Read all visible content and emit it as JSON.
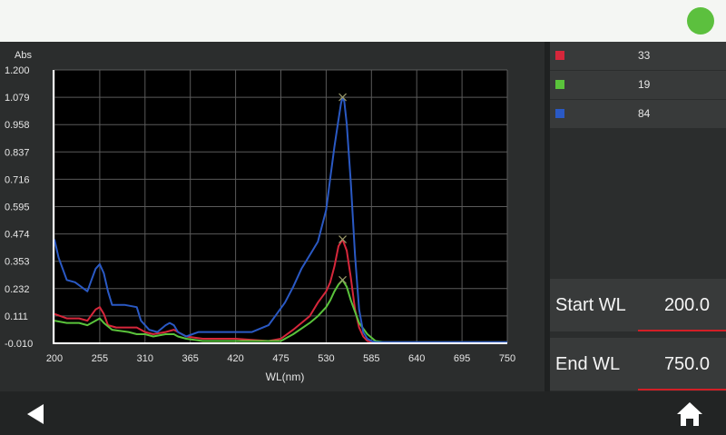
{
  "chart_data": {
    "type": "line",
    "ylabel": "Abs",
    "xlabel": "WL(nm)",
    "xlim": [
      200,
      750
    ],
    "ylim": [
      -0.01,
      1.2
    ],
    "x_ticks": [
      "200",
      "255",
      "310",
      "365",
      "420",
      "475",
      "530",
      "585",
      "640",
      "695",
      "750"
    ],
    "y_ticks": [
      "1.200",
      "1.079",
      "0.958",
      "0.837",
      "0.716",
      "0.595",
      "0.474",
      "0.353",
      "0.232",
      "0.111",
      "-0.010"
    ],
    "grid": true,
    "series": [
      {
        "name": "33",
        "color": "#d6273b",
        "x": [
          200,
          215,
          230,
          240,
          250,
          255,
          260,
          265,
          275,
          300,
          310,
          320,
          335,
          345,
          350,
          360,
          380,
          400,
          420,
          460,
          475,
          490,
          510,
          520,
          530,
          535,
          540,
          545,
          550,
          555,
          560,
          565,
          570,
          575,
          580,
          590,
          600,
          750
        ],
        "y": [
          0.12,
          0.1,
          0.1,
          0.09,
          0.14,
          0.15,
          0.12,
          0.07,
          0.06,
          0.06,
          0.04,
          0.03,
          0.04,
          0.05,
          0.04,
          0.02,
          0.01,
          0.01,
          0.01,
          0.0,
          0.01,
          0.05,
          0.11,
          0.17,
          0.22,
          0.26,
          0.33,
          0.42,
          0.45,
          0.4,
          0.28,
          0.14,
          0.06,
          0.02,
          0.0,
          -0.005,
          -0.005,
          -0.005
        ],
        "peak": {
          "x": 550,
          "y": 0.45
        }
      },
      {
        "name": "19",
        "color": "#5ac33b",
        "x": [
          200,
          215,
          230,
          240,
          250,
          255,
          260,
          270,
          290,
          300,
          310,
          320,
          335,
          345,
          350,
          360,
          380,
          400,
          420,
          460,
          475,
          490,
          510,
          520,
          530,
          535,
          540,
          545,
          550,
          555,
          560,
          570,
          580,
          590,
          600,
          750
        ],
        "y": [
          0.09,
          0.08,
          0.08,
          0.07,
          0.09,
          0.1,
          0.08,
          0.05,
          0.04,
          0.03,
          0.03,
          0.02,
          0.03,
          0.03,
          0.02,
          0.01,
          0.0,
          0.0,
          0.0,
          0.0,
          0.0,
          0.03,
          0.08,
          0.11,
          0.15,
          0.18,
          0.22,
          0.25,
          0.27,
          0.24,
          0.18,
          0.08,
          0.03,
          0.0,
          -0.005,
          -0.005
        ],
        "peak": {
          "x": 550,
          "y": 0.27
        }
      },
      {
        "name": "84",
        "color": "#2a59c4",
        "x": [
          200,
          205,
          215,
          225,
          240,
          245,
          250,
          255,
          260,
          265,
          270,
          285,
          300,
          305,
          315,
          325,
          335,
          340,
          345,
          350,
          360,
          375,
          420,
          440,
          460,
          470,
          480,
          490,
          500,
          510,
          520,
          530,
          535,
          540,
          545,
          548,
          550,
          552,
          555,
          560,
          565,
          570,
          575,
          580,
          585,
          590,
          600,
          750
        ],
        "y": [
          0.45,
          0.37,
          0.27,
          0.26,
          0.22,
          0.27,
          0.32,
          0.34,
          0.3,
          0.22,
          0.16,
          0.16,
          0.15,
          0.09,
          0.05,
          0.04,
          0.07,
          0.08,
          0.07,
          0.04,
          0.02,
          0.04,
          0.04,
          0.04,
          0.07,
          0.12,
          0.17,
          0.24,
          0.32,
          0.38,
          0.44,
          0.58,
          0.72,
          0.86,
          0.98,
          1.05,
          1.079,
          1.06,
          0.96,
          0.7,
          0.38,
          0.14,
          0.04,
          0.01,
          0.0,
          -0.005,
          -0.005,
          -0.005
        ],
        "peak": {
          "x": 550,
          "y": 1.079
        }
      }
    ]
  },
  "legend": [
    {
      "color": "#d6273b",
      "value": "33"
    },
    {
      "color": "#5ac33b",
      "value": "19"
    },
    {
      "color": "#2a59c4",
      "value": "84"
    }
  ],
  "start_wl": {
    "label": "Start WL",
    "value": "200.0"
  },
  "end_wl": {
    "label": "End WL",
    "value": "750.0"
  },
  "icons": {
    "back": "back-arrow-icon",
    "home": "home-icon",
    "status": "status-indicator"
  }
}
